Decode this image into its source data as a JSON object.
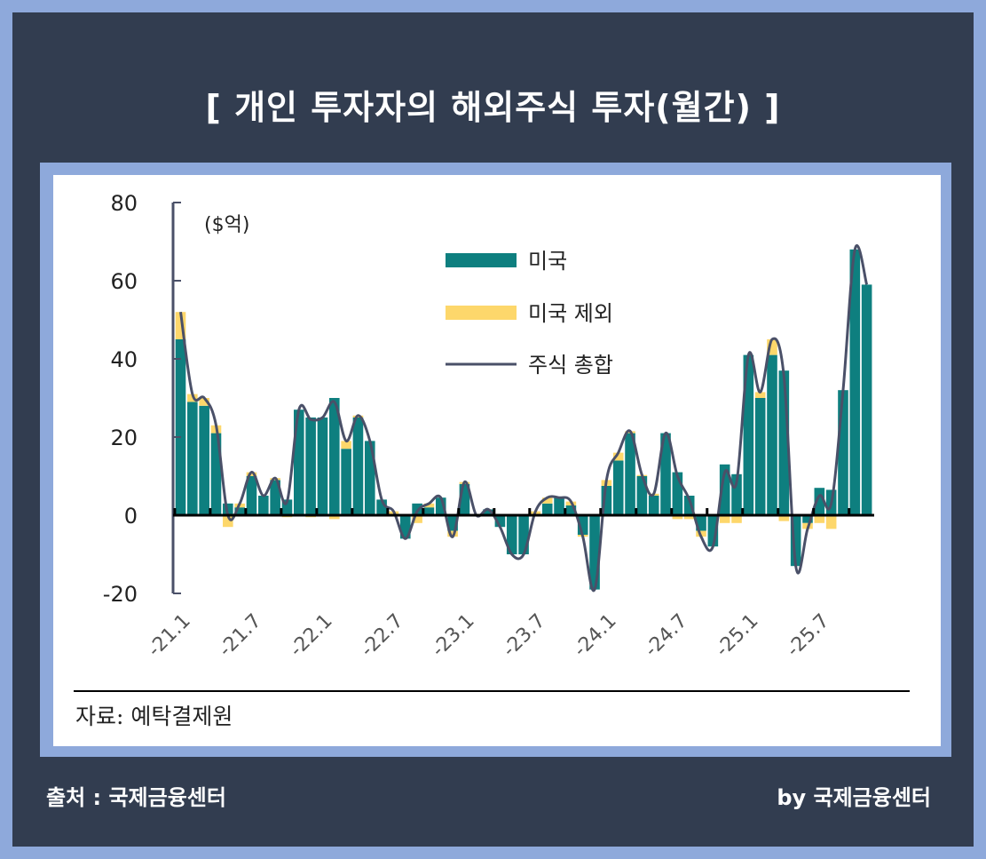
{
  "title": "[ 개인 투자자의 해외주식 투자(월간) ]",
  "footer": {
    "left": "출처 : 국제금융센터",
    "right": "by 국제금융센터"
  },
  "source": "자료: 예탁결제원",
  "colors": {
    "us": "#0e7f7f",
    "ex_us": "#fdd76b",
    "total": "#4a5068"
  },
  "chart_data": {
    "type": "bar",
    "unit": "($억)",
    "ylim": [
      -20,
      80
    ],
    "yticks": [
      80,
      60,
      40,
      20,
      0,
      -20
    ],
    "xtick_labels": [
      "-21.1",
      "-21.7",
      "-22.1",
      "-22.7",
      "-23.1",
      "-23.7",
      "-24.1",
      "-24.7",
      "-25.1",
      "-25.7"
    ],
    "legend": [
      "미국",
      "미국 제외",
      "주식 총합"
    ],
    "categories": [
      "21.1",
      "21.2",
      "21.3",
      "21.4",
      "21.5",
      "21.6",
      "21.7",
      "21.8",
      "21.9",
      "21.10",
      "21.11",
      "21.12",
      "22.1",
      "22.2",
      "22.3",
      "22.4",
      "22.5",
      "22.6",
      "22.7",
      "22.8",
      "22.9",
      "22.10",
      "22.11",
      "22.12",
      "23.1",
      "23.2",
      "23.3",
      "23.4",
      "23.5",
      "23.6",
      "23.7",
      "23.8",
      "23.9",
      "23.10",
      "23.11",
      "23.12",
      "24.1",
      "24.2",
      "24.3",
      "24.4",
      "24.5",
      "24.6",
      "24.7",
      "24.8",
      "24.9",
      "24.10",
      "24.11",
      "24.12",
      "25.1",
      "25.2",
      "25.3",
      "25.4",
      "25.5",
      "25.6",
      "25.7",
      "25.8",
      "25.9",
      "25.10",
      "25.11"
    ],
    "series": [
      {
        "name": "미국",
        "type": "bar",
        "values": [
          45,
          29,
          28,
          21,
          3,
          2,
          10,
          5,
          9,
          4,
          27,
          25,
          25,
          30,
          17,
          25,
          19,
          4,
          0,
          -6,
          3,
          2,
          4.5,
          -4,
          8,
          0,
          1.5,
          -3,
          -10,
          -10,
          0,
          3,
          4.5,
          2.5,
          -5,
          -19,
          7.5,
          14,
          21,
          10,
          5,
          21,
          11,
          5,
          -4,
          -8,
          13,
          10.5,
          41,
          30,
          41,
          37,
          -13,
          -2,
          7,
          6.5,
          32,
          68,
          59
        ]
      },
      {
        "name": "미국 제외",
        "type": "bar",
        "values": [
          7,
          2,
          2,
          2,
          -3,
          1,
          1,
          0,
          0.5,
          -0.5,
          0,
          -0.5,
          0,
          -1,
          2,
          0.5,
          0,
          0,
          1,
          0,
          -2,
          1,
          0,
          -1.5,
          0.5,
          0,
          0,
          0,
          0,
          0,
          1,
          1.5,
          0,
          1,
          -0.5,
          0,
          1.5,
          2,
          0.5,
          0.3,
          0.5,
          0,
          -1,
          -1,
          -1.5,
          0,
          -2,
          -2,
          0,
          1.5,
          4,
          -1.5,
          0,
          -1.5,
          -2,
          -3.5,
          0,
          0,
          0
        ]
      }
    ]
  }
}
